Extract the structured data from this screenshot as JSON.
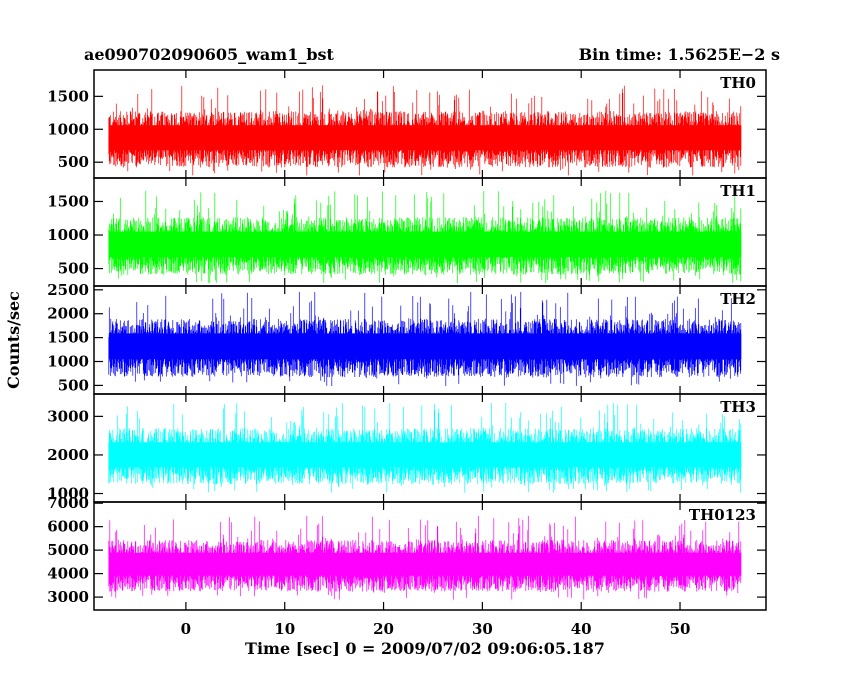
{
  "chart_data": {
    "type": "line",
    "title_left": "ae090702090605_wam1_bst",
    "title_right": "Bin time: 1.5625E−2 s",
    "xlabel": "Time [sec] 0 = 2009/07/02 09:06:05.187",
    "ylabel": "Counts/sec",
    "xlim": [
      -9.3,
      58.7
    ],
    "x_ticks": [
      0,
      10,
      20,
      30,
      40,
      50
    ],
    "data_x_range": [
      -7.8,
      56.2
    ],
    "bin_time": 0.015625,
    "grid": false,
    "panels": [
      {
        "name": "TH0",
        "color": "#ff0000",
        "ylim": [
          260,
          1900
        ],
        "y_ticks": [
          500,
          1000,
          1500
        ],
        "mean": 880,
        "spread": 330,
        "min": 300,
        "max": 1870
      },
      {
        "name": "TH1",
        "color": "#00ff00",
        "ylim": [
          240,
          1850
        ],
        "y_ticks": [
          500,
          1000,
          1500
        ],
        "mean": 870,
        "spread": 330,
        "min": 280,
        "max": 1850
      },
      {
        "name": "TH2",
        "color": "#0000ff",
        "ylim": [
          320,
          2580
        ],
        "y_ticks": [
          500,
          1000,
          1500,
          2000,
          2500
        ],
        "mean": 1330,
        "spread": 470,
        "min": 350,
        "max": 2500
      },
      {
        "name": "TH3",
        "color": "#00ffff",
        "ylim": [
          780,
          3580
        ],
        "y_ticks": [
          1000,
          2000,
          3000
        ],
        "mean": 2020,
        "spread": 560,
        "min": 820,
        "max": 3450
      },
      {
        "name": "TH0123",
        "color": "#ff00ff",
        "ylim": [
          2450,
          7050
        ],
        "y_ticks": [
          3000,
          4000,
          5000,
          6000,
          7000
        ],
        "mean": 4420,
        "spread": 850,
        "min": 2600,
        "max": 6950
      }
    ]
  }
}
